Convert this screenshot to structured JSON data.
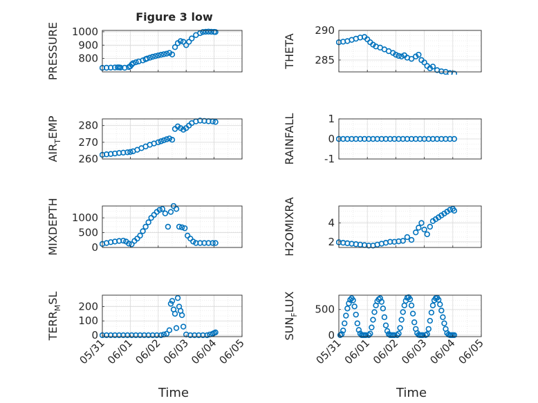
{
  "figure_title": "Figure 3 low",
  "chart_data": [
    {
      "id": "pressure",
      "type": "scatter",
      "title": "Figure 3 low",
      "ylabel": "PRESSURE",
      "xlabel": "",
      "ylim": [
        700,
        1010
      ],
      "yticks": [
        800,
        900,
        1000
      ],
      "xlim": [
        0,
        5
      ],
      "xticks": [
        0,
        1,
        2,
        3,
        4,
        5
      ],
      "xtick_labels": [],
      "grid": true,
      "color": "#0072BD",
      "x": [
        0.0,
        0.15,
        0.3,
        0.45,
        0.55,
        0.6,
        0.65,
        0.8,
        0.95,
        1.0,
        1.05,
        1.1,
        1.2,
        1.3,
        1.45,
        1.55,
        1.6,
        1.7,
        1.8,
        1.9,
        2.0,
        2.1,
        2.2,
        2.3,
        2.4,
        2.5,
        2.6,
        2.7,
        2.8,
        2.9,
        3.0,
        3.1,
        3.2,
        3.35,
        3.5,
        3.6,
        3.7,
        3.8,
        3.9,
        4.0,
        4.05
      ],
      "y": [
        730,
        731,
        732,
        733,
        734,
        734,
        732,
        731,
        736,
        742,
        755,
        765,
        772,
        778,
        786,
        795,
        800,
        806,
        813,
        818,
        823,
        828,
        832,
        836,
        842,
        830,
        885,
        915,
        930,
        925,
        900,
        925,
        950,
        975,
        990,
        998,
        1000,
        1001,
        1000,
        999,
        998
      ]
    },
    {
      "id": "theta",
      "type": "scatter",
      "ylabel": "THETA",
      "xlabel": "",
      "ylim": [
        283,
        290
      ],
      "yticks": [
        285,
        290
      ],
      "xlim": [
        0,
        5
      ],
      "xticks": [
        0,
        1,
        2,
        3,
        4,
        5
      ],
      "xtick_labels": [],
      "grid": true,
      "color": "#0072BD",
      "x": [
        0.0,
        0.15,
        0.3,
        0.45,
        0.6,
        0.75,
        0.9,
        1.0,
        1.1,
        1.2,
        1.3,
        1.45,
        1.6,
        1.75,
        1.9,
        2.0,
        2.1,
        2.2,
        2.3,
        2.4,
        2.55,
        2.7,
        2.8,
        2.9,
        3.0,
        3.1,
        3.2,
        3.3,
        3.45,
        3.6,
        3.75,
        3.9,
        4.05
      ],
      "y": [
        288.0,
        288.1,
        288.2,
        288.4,
        288.6,
        288.8,
        288.9,
        288.5,
        288.0,
        287.6,
        287.3,
        287.1,
        286.8,
        286.5,
        286.2,
        285.9,
        285.7,
        285.6,
        285.8,
        285.4,
        285.2,
        285.6,
        285.9,
        285.0,
        284.6,
        284.0,
        283.6,
        283.9,
        283.3,
        283.1,
        283.0,
        282.8,
        282.7
      ]
    },
    {
      "id": "air_temp",
      "type": "scatter",
      "ylabel": "AIR_TEMP",
      "xlabel": "",
      "ylim": [
        260,
        284
      ],
      "yticks": [
        260,
        270,
        280
      ],
      "xlim": [
        0,
        5
      ],
      "xticks": [
        0,
        1,
        2,
        3,
        4,
        5
      ],
      "xtick_labels": [],
      "grid": true,
      "color": "#0072BD",
      "x": [
        0.0,
        0.15,
        0.3,
        0.45,
        0.6,
        0.75,
        0.9,
        1.0,
        1.1,
        1.25,
        1.4,
        1.55,
        1.7,
        1.85,
        2.0,
        2.1,
        2.2,
        2.3,
        2.4,
        2.5,
        2.6,
        2.7,
        2.8,
        2.9,
        3.0,
        3.1,
        3.2,
        3.35,
        3.5,
        3.65,
        3.8,
        3.95,
        4.05
      ],
      "y": [
        262.5,
        262.8,
        263.0,
        263.3,
        263.6,
        263.8,
        264.0,
        264.2,
        264.6,
        265.5,
        266.5,
        267.5,
        268.5,
        269.3,
        270.0,
        270.6,
        271.2,
        271.8,
        272.3,
        271.5,
        278.0,
        279.5,
        278.5,
        277.5,
        278.5,
        280.0,
        281.5,
        282.5,
        283.0,
        282.8,
        282.6,
        282.5,
        282.2
      ]
    },
    {
      "id": "rainfall",
      "type": "scatter",
      "ylabel": "RAINFALL",
      "xlabel": "",
      "ylim": [
        -1,
        1
      ],
      "yticks": [
        -1,
        0,
        1
      ],
      "xlim": [
        0,
        5
      ],
      "xticks": [
        0,
        1,
        2,
        3,
        4,
        5
      ],
      "xtick_labels": [],
      "grid": true,
      "color": "#0072BD",
      "x": [
        0.0,
        0.15,
        0.3,
        0.45,
        0.6,
        0.75,
        0.9,
        1.05,
        1.2,
        1.35,
        1.5,
        1.65,
        1.8,
        1.95,
        2.1,
        2.25,
        2.4,
        2.55,
        2.7,
        2.85,
        3.0,
        3.15,
        3.3,
        3.45,
        3.6,
        3.75,
        3.9,
        4.05
      ],
      "y": [
        0,
        0,
        0,
        0,
        0,
        0,
        0,
        0,
        0,
        0,
        0,
        0,
        0,
        0,
        0,
        0,
        0,
        0,
        0,
        0,
        0,
        0,
        0,
        0,
        0,
        0,
        0,
        0
      ]
    },
    {
      "id": "mixdepth",
      "type": "scatter",
      "ylabel": "MIXDEPTH",
      "xlabel": "",
      "ylim": [
        0,
        1400
      ],
      "yticks": [
        0,
        500,
        1000
      ],
      "xlim": [
        0,
        5
      ],
      "xticks": [
        0,
        1,
        2,
        3,
        4,
        5
      ],
      "xtick_labels": [],
      "grid": true,
      "color": "#0072BD",
      "x": [
        0.0,
        0.15,
        0.3,
        0.45,
        0.6,
        0.75,
        0.85,
        0.95,
        1.05,
        1.15,
        1.25,
        1.35,
        1.45,
        1.55,
        1.65,
        1.75,
        1.85,
        1.95,
        2.05,
        2.15,
        2.25,
        2.35,
        2.45,
        2.55,
        2.65,
        2.75,
        2.85,
        2.95,
        3.05,
        3.15,
        3.25,
        3.35,
        3.5,
        3.65,
        3.8,
        3.95,
        4.05
      ],
      "y": [
        120,
        150,
        180,
        200,
        220,
        230,
        200,
        130,
        110,
        220,
        300,
        400,
        550,
        700,
        850,
        1000,
        1100,
        1200,
        1270,
        1300,
        1150,
        700,
        1200,
        1400,
        1300,
        700,
        680,
        650,
        400,
        300,
        200,
        150,
        150,
        150,
        150,
        150,
        150
      ]
    },
    {
      "id": "h2omixra",
      "type": "scatter",
      "ylabel": "H2OMIXRA",
      "xlabel": "",
      "ylim": [
        1.4,
        5.8
      ],
      "yticks": [
        2,
        4
      ],
      "xlim": [
        0,
        5
      ],
      "xticks": [
        0,
        1,
        2,
        3,
        4,
        5
      ],
      "xtick_labels": [],
      "grid": true,
      "color": "#0072BD",
      "x": [
        0.0,
        0.15,
        0.3,
        0.45,
        0.6,
        0.75,
        0.9,
        1.05,
        1.2,
        1.35,
        1.5,
        1.65,
        1.8,
        1.95,
        2.1,
        2.25,
        2.4,
        2.55,
        2.7,
        2.8,
        2.9,
        3.0,
        3.1,
        3.2,
        3.3,
        3.4,
        3.5,
        3.6,
        3.7,
        3.8,
        3.9,
        4.0,
        4.05
      ],
      "y": [
        1.95,
        1.9,
        1.85,
        1.8,
        1.75,
        1.7,
        1.65,
        1.6,
        1.6,
        1.7,
        1.8,
        1.9,
        2.0,
        2.0,
        2.05,
        2.1,
        2.5,
        2.2,
        3.0,
        3.5,
        4.0,
        3.3,
        2.8,
        3.6,
        4.2,
        4.4,
        4.6,
        4.8,
        5.0,
        5.2,
        5.4,
        5.5,
        5.3
      ]
    },
    {
      "id": "terr_msl",
      "type": "scatter",
      "ylabel": "TERR_MSL",
      "xlabel": "Time",
      "ylim": [
        -10,
        280
      ],
      "yticks": [
        0,
        100,
        200
      ],
      "xlim": [
        0,
        5
      ],
      "xticks": [
        0,
        1,
        2,
        3,
        4,
        5
      ],
      "xtick_labels": [
        "05/31",
        "06/01",
        "06/02",
        "06/03",
        "06/04",
        "06/05"
      ],
      "grid": true,
      "color": "#0072BD",
      "x": [
        0.0,
        0.15,
        0.3,
        0.45,
        0.6,
        0.75,
        0.9,
        1.05,
        1.2,
        1.35,
        1.5,
        1.65,
        1.8,
        1.95,
        2.1,
        2.2,
        2.3,
        2.4,
        2.45,
        2.5,
        2.55,
        2.6,
        2.65,
        2.7,
        2.75,
        2.8,
        2.85,
        2.9,
        3.0,
        3.15,
        3.3,
        3.45,
        3.6,
        3.75,
        3.85,
        3.95,
        4.0,
        4.05
      ],
      "y": [
        0,
        0,
        0,
        0,
        0,
        0,
        0,
        0,
        0,
        0,
        0,
        0,
        0,
        0,
        0,
        5,
        10,
        35,
        220,
        240,
        180,
        150,
        50,
        260,
        200,
        170,
        140,
        60,
        5,
        0,
        0,
        0,
        0,
        0,
        5,
        10,
        15,
        20
      ]
    },
    {
      "id": "sun_flux",
      "type": "scatter",
      "ylabel": "SUN_FLUX",
      "xlabel": "Time",
      "ylim": [
        -30,
        780
      ],
      "yticks": [
        0,
        500
      ],
      "xlim": [
        0,
        5
      ],
      "xticks": [
        0,
        1,
        2,
        3,
        4,
        5
      ],
      "xtick_labels": [
        "05/31",
        "06/01",
        "06/02",
        "06/03",
        "06/04",
        "06/05"
      ],
      "grid": true,
      "color": "#0072BD",
      "x": [
        0.05,
        0.1,
        0.15,
        0.2,
        0.25,
        0.3,
        0.35,
        0.4,
        0.45,
        0.5,
        0.55,
        0.6,
        0.65,
        0.7,
        0.75,
        0.8,
        0.85,
        0.9,
        0.95,
        1.05,
        1.1,
        1.15,
        1.2,
        1.25,
        1.3,
        1.35,
        1.4,
        1.45,
        1.5,
        1.55,
        1.6,
        1.65,
        1.7,
        1.75,
        1.8,
        1.85,
        1.9,
        1.95,
        2.05,
        2.1,
        2.15,
        2.2,
        2.25,
        2.3,
        2.35,
        2.4,
        2.45,
        2.5,
        2.55,
        2.6,
        2.65,
        2.7,
        2.75,
        2.8,
        2.85,
        2.9,
        2.95,
        3.05,
        3.1,
        3.15,
        3.2,
        3.25,
        3.3,
        3.35,
        3.4,
        3.45,
        3.5,
        3.55,
        3.6,
        3.65,
        3.7,
        3.75,
        3.8,
        3.85,
        3.9,
        3.95,
        4.0,
        4.05
      ],
      "y": [
        0,
        20,
        90,
        230,
        380,
        520,
        620,
        690,
        720,
        680,
        560,
        400,
        230,
        100,
        30,
        0,
        0,
        0,
        0,
        0,
        30,
        150,
        300,
        450,
        580,
        660,
        700,
        720,
        650,
        520,
        350,
        190,
        80,
        20,
        0,
        0,
        0,
        0,
        0,
        30,
        140,
        300,
        450,
        580,
        670,
        730,
        740,
        700,
        580,
        420,
        250,
        120,
        40,
        5,
        0,
        0,
        0,
        0,
        20,
        120,
        280,
        440,
        580,
        680,
        720,
        730,
        690,
        600,
        480,
        350,
        230,
        120,
        40,
        10,
        0,
        0,
        0,
        0
      ]
    }
  ]
}
